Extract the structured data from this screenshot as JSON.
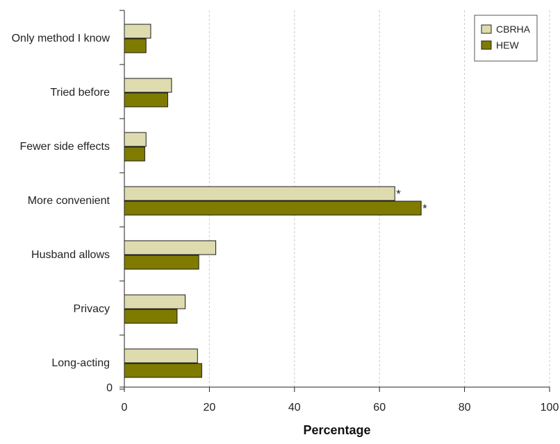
{
  "chart_data": {
    "type": "bar",
    "orientation": "horizontal",
    "categories": [
      "Only method I know",
      "Tried before",
      "Fewer side effects",
      "More convenient",
      "Husband allows",
      "Privacy",
      "Long-acting"
    ],
    "series": [
      {
        "name": "CBRHA",
        "values": [
          6.2,
          11.1,
          5.1,
          63.6,
          21.5,
          14.3,
          17.2
        ],
        "color": "#dedbae",
        "markers": [
          "",
          "",
          "",
          "*",
          "",
          "",
          ""
        ]
      },
      {
        "name": "HEW",
        "values": [
          5.1,
          10.2,
          4.8,
          69.8,
          17.5,
          12.4,
          18.2
        ],
        "color": "#7f7b00",
        "markers": [
          "",
          "",
          "",
          "*",
          "",
          "",
          ""
        ]
      }
    ],
    "title": "",
    "xlabel": "Percentage",
    "ylabel": "",
    "xlim": [
      0,
      100
    ],
    "xticks": [
      "0",
      "20",
      "40",
      "60",
      "80",
      "100"
    ],
    "yaxis_origin_label": "0",
    "grid": "vertical dashed",
    "legend": "top-right"
  }
}
